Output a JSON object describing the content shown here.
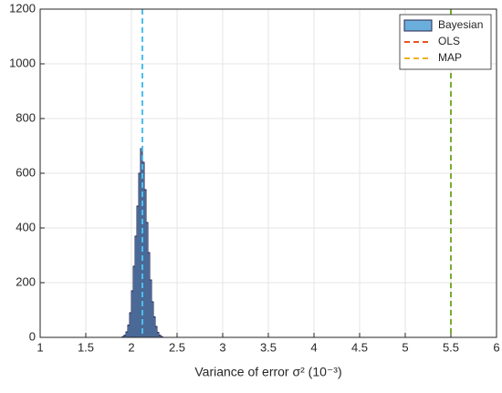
{
  "chart_data": {
    "type": "histogram",
    "xlabel": "Variance of error σ² (10⁻³)",
    "bins": [
      1.9,
      1.92,
      1.94,
      1.96,
      1.98,
      2.0,
      2.02,
      2.04,
      2.06,
      2.08,
      2.1,
      2.12,
      2.14,
      2.16,
      2.18,
      2.2,
      2.22,
      2.24,
      2.26,
      2.28,
      2.3,
      2.32,
      2.34
    ],
    "series": [
      {
        "name": "Bayesian",
        "color": "#6aaedb",
        "edge_color": "#2a2450",
        "values": [
          3,
          8,
          20,
          45,
          90,
          170,
          260,
          370,
          480,
          600,
          690,
          640,
          540,
          420,
          310,
          210,
          130,
          75,
          40,
          18,
          8,
          3
        ]
      }
    ],
    "vlines": [
      {
        "name": "OLS",
        "x": 5.5,
        "color": "#e8541b",
        "line_color": "#77ac30"
      },
      {
        "name": "MAP",
        "x": 2.12,
        "color": "#edb120",
        "line_color": "#4dbeee"
      }
    ],
    "xlim": [
      1,
      6
    ],
    "xticks": [
      1,
      1.5,
      2,
      2.5,
      3,
      3.5,
      4,
      4.5,
      5,
      5.5,
      6
    ],
    "ylim": [
      0,
      1200
    ],
    "yticks": [
      0,
      200,
      400,
      600,
      800,
      1000,
      1200
    ],
    "grid": true,
    "legend": "top-right"
  }
}
